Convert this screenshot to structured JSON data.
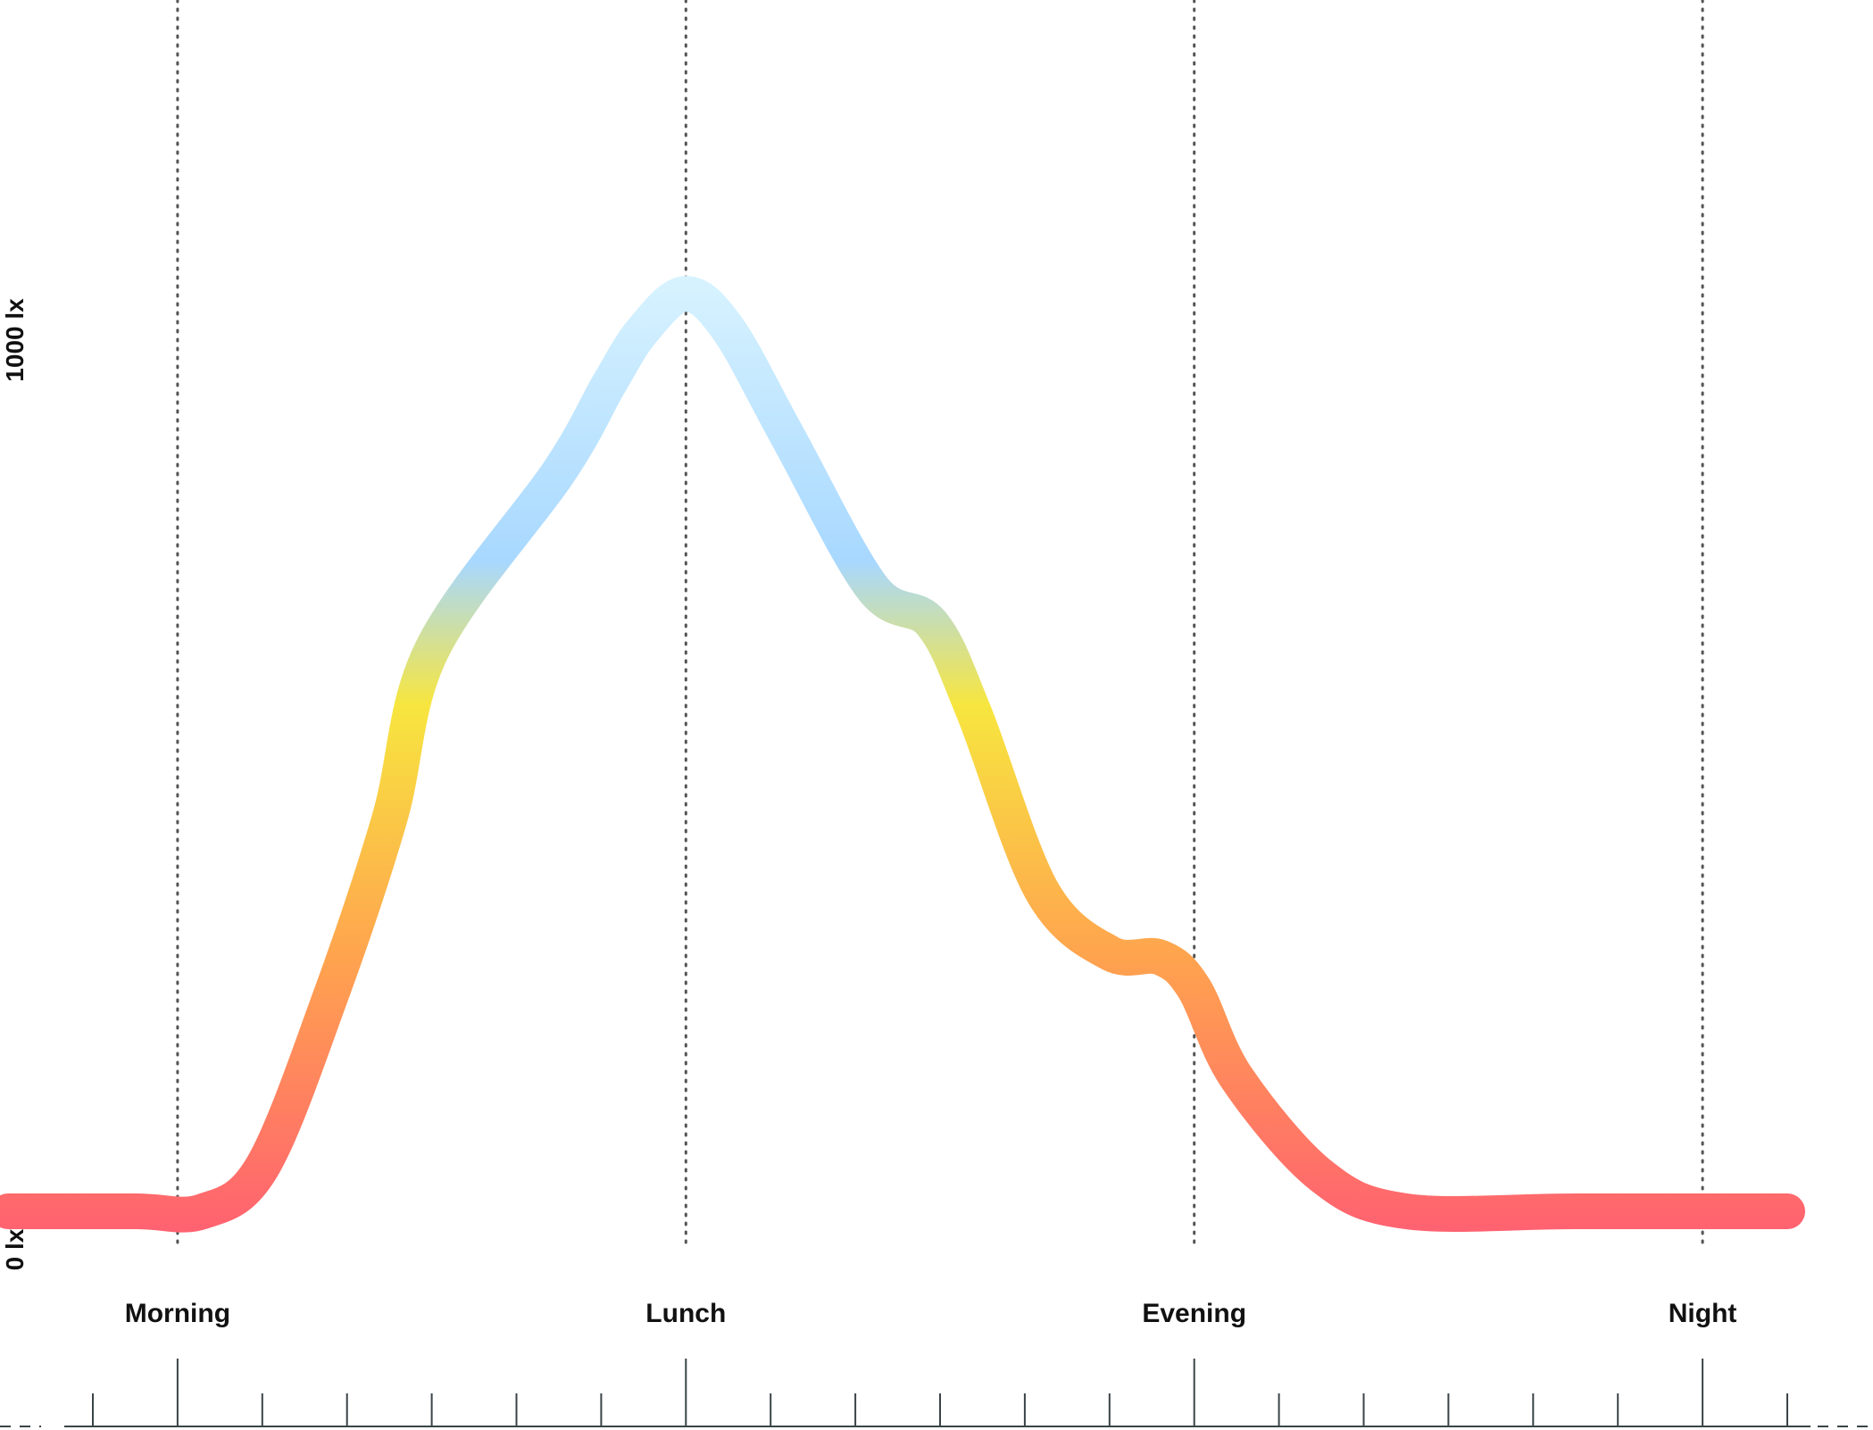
{
  "chart_data": {
    "type": "line",
    "y_axis": {
      "ticks": [
        {
          "value": 0,
          "label": "0 lx"
        },
        {
          "value": 1000,
          "label": "1000 lx"
        }
      ]
    },
    "x_axis": {
      "range_hours": [
        5,
        25
      ],
      "major_ticks": [
        {
          "hour": 6,
          "label": "Morning"
        },
        {
          "hour": 12,
          "label": "Lunch"
        },
        {
          "hour": 18,
          "label": "Evening"
        },
        {
          "hour": 24,
          "label": "Night"
        }
      ],
      "minor_tick_every_hours": 1
    },
    "grid": "vertical-dotted-at-major-ticks",
    "series": [
      {
        "points": [
          [
            4.0,
            0
          ],
          [
            5.5,
            0
          ],
          [
            6.3,
            0
          ],
          [
            7.0,
            50
          ],
          [
            7.8,
            240
          ],
          [
            8.5,
            440
          ],
          [
            9.0,
            630
          ],
          [
            10.5,
            830
          ],
          [
            11.1,
            930
          ],
          [
            11.5,
            990
          ],
          [
            12.0,
            1030
          ],
          [
            12.5,
            990
          ],
          [
            13.2,
            870
          ],
          [
            14.2,
            700
          ],
          [
            14.9,
            660
          ],
          [
            15.4,
            560
          ],
          [
            16.2,
            360
          ],
          [
            17.0,
            290
          ],
          [
            17.6,
            285
          ],
          [
            18.0,
            250
          ],
          [
            18.5,
            150
          ],
          [
            19.5,
            40
          ],
          [
            20.5,
            0
          ],
          [
            22.5,
            0
          ],
          [
            25.0,
            0
          ]
        ],
        "color_stops": [
          {
            "offset": 0.0,
            "color": "#ff6270"
          },
          {
            "offset": 0.28,
            "color": "#ffa24f"
          },
          {
            "offset": 0.55,
            "color": "#f7e63f"
          },
          {
            "offset": 0.7,
            "color": "#a8d8ff"
          },
          {
            "offset": 1.0,
            "color": "#d8f3ff"
          }
        ]
      }
    ]
  }
}
